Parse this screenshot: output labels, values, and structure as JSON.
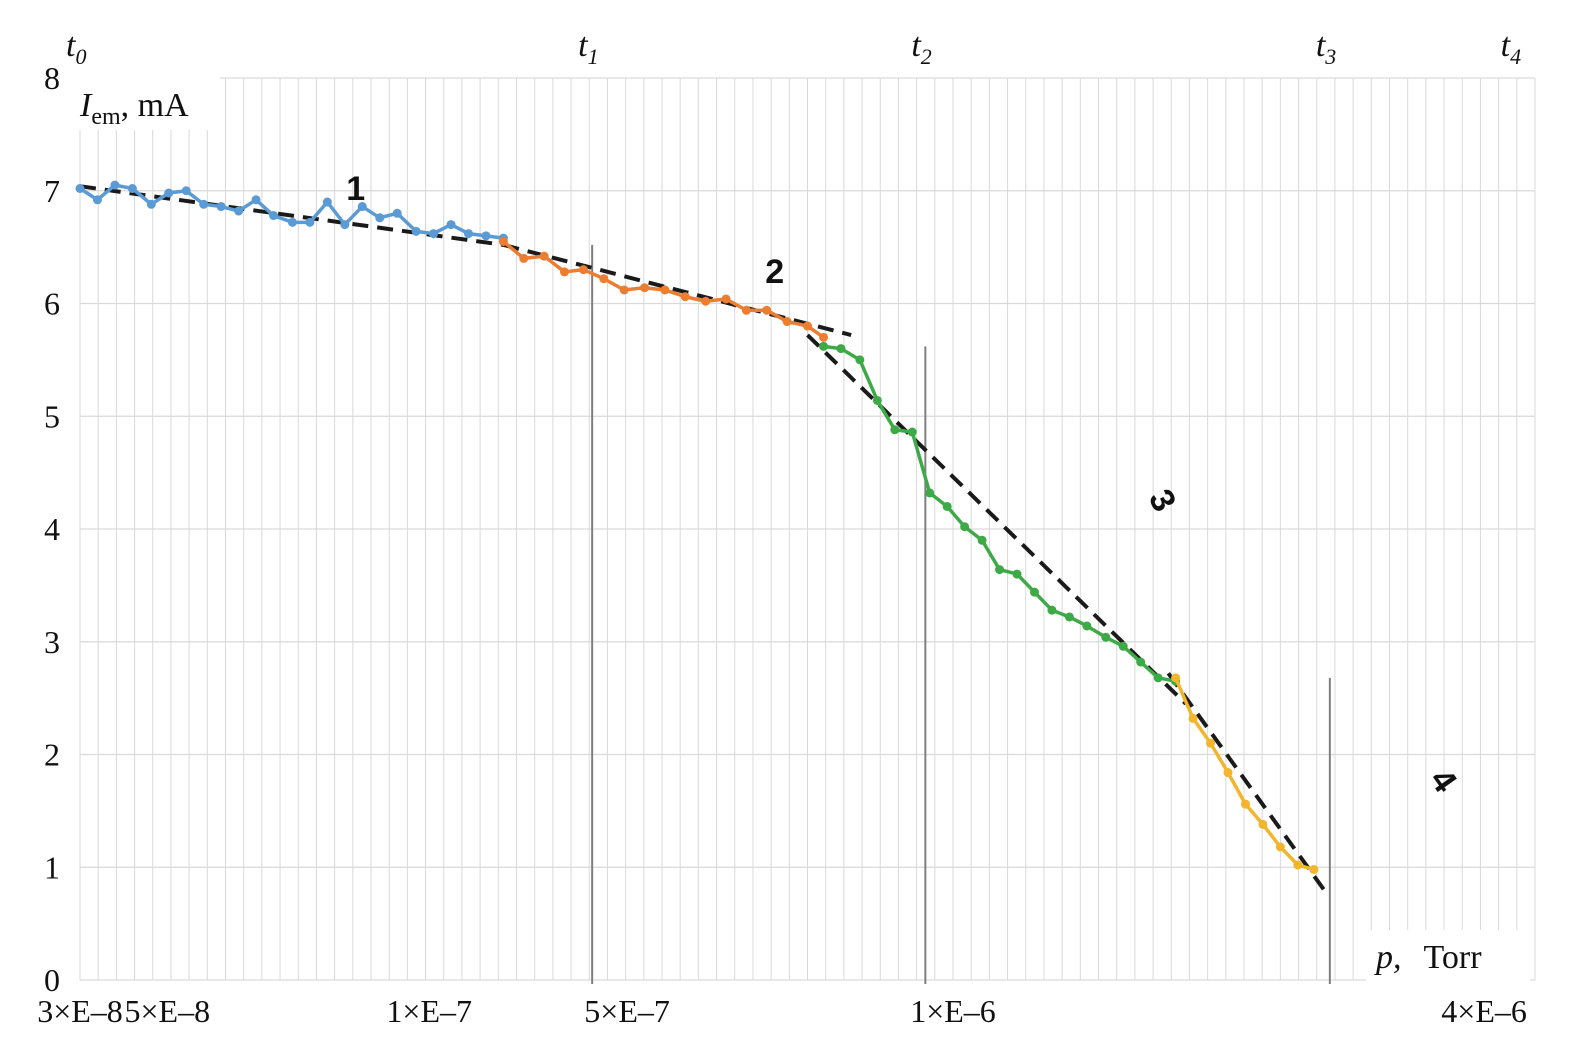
{
  "chart_data": {
    "type": "line",
    "title": "",
    "ylabel": {
      "symbol": "I",
      "subscript": "em",
      "unit": ", mA"
    },
    "xlabel": {
      "symbol": "p,",
      "unit": "Torr"
    },
    "ylim": [
      0,
      8
    ],
    "y_ticks": [
      "0",
      "1",
      "2",
      "3",
      "4",
      "5",
      "6",
      "7",
      "8"
    ],
    "x_tick_labels": [
      {
        "text": "3×E–8",
        "t": 0.0
      },
      {
        "text": "5×E–8",
        "t": 0.06
      },
      {
        "text": "1×E–7",
        "t": 0.24
      },
      {
        "text": "5×E–7",
        "t": 0.376
      },
      {
        "text": "1×E–6",
        "t": 0.6
      },
      {
        "text": "4×E–6",
        "t": 0.965
      }
    ],
    "grid": true,
    "events": [
      {
        "name": "t",
        "sub": "0",
        "t": 0.0
      },
      {
        "name": "t",
        "sub": "1",
        "t": 0.352
      },
      {
        "name": "t",
        "sub": "2",
        "t": 0.581
      },
      {
        "name": "t",
        "sub": "3",
        "t": 0.859
      },
      {
        "name": "t",
        "sub": "4",
        "t": 0.986
      }
    ],
    "series": [
      {
        "label": "1",
        "color": "#5b9bd5",
        "points": [
          [
            0.0,
            7.02
          ],
          [
            0.012,
            6.92
          ],
          [
            0.024,
            7.05
          ],
          [
            0.036,
            7.02
          ],
          [
            0.049,
            6.88
          ],
          [
            0.061,
            6.98
          ],
          [
            0.073,
            7.0
          ],
          [
            0.085,
            6.88
          ],
          [
            0.097,
            6.86
          ],
          [
            0.109,
            6.82
          ],
          [
            0.121,
            6.92
          ],
          [
            0.133,
            6.78
          ],
          [
            0.146,
            6.72
          ],
          [
            0.158,
            6.72
          ],
          [
            0.17,
            6.9
          ],
          [
            0.182,
            6.7
          ],
          [
            0.194,
            6.86
          ],
          [
            0.206,
            6.76
          ],
          [
            0.218,
            6.8
          ],
          [
            0.231,
            6.64
          ],
          [
            0.243,
            6.62
          ],
          [
            0.255,
            6.7
          ],
          [
            0.267,
            6.62
          ],
          [
            0.279,
            6.6
          ],
          [
            0.291,
            6.58
          ]
        ]
      },
      {
        "label": "2",
        "color": "#ed7d31",
        "points": [
          [
            0.291,
            6.55
          ],
          [
            0.305,
            6.4
          ],
          [
            0.319,
            6.42
          ],
          [
            0.333,
            6.28
          ],
          [
            0.346,
            6.3
          ],
          [
            0.36,
            6.22
          ],
          [
            0.374,
            6.12
          ],
          [
            0.388,
            6.14
          ],
          [
            0.402,
            6.12
          ],
          [
            0.416,
            6.06
          ],
          [
            0.43,
            6.02
          ],
          [
            0.444,
            6.04
          ],
          [
            0.458,
            5.94
          ],
          [
            0.472,
            5.94
          ],
          [
            0.486,
            5.84
          ],
          [
            0.5,
            5.8
          ],
          [
            0.511,
            5.7
          ]
        ]
      },
      {
        "label": "3",
        "color": "#3daa47",
        "points": [
          [
            0.511,
            5.62
          ],
          [
            0.523,
            5.6
          ],
          [
            0.536,
            5.5
          ],
          [
            0.548,
            5.14
          ],
          [
            0.56,
            4.88
          ],
          [
            0.572,
            4.86
          ],
          [
            0.584,
            4.32
          ],
          [
            0.596,
            4.2
          ],
          [
            0.608,
            4.02
          ],
          [
            0.62,
            3.9
          ],
          [
            0.632,
            3.64
          ],
          [
            0.644,
            3.6
          ],
          [
            0.656,
            3.44
          ],
          [
            0.668,
            3.28
          ],
          [
            0.68,
            3.22
          ],
          [
            0.692,
            3.14
          ],
          [
            0.705,
            3.04
          ],
          [
            0.717,
            2.96
          ],
          [
            0.729,
            2.82
          ],
          [
            0.741,
            2.68
          ],
          [
            0.753,
            2.65
          ]
        ]
      },
      {
        "label": "4",
        "color": "#f2b52b",
        "points": [
          [
            0.753,
            2.68
          ],
          [
            0.765,
            2.32
          ],
          [
            0.777,
            2.1
          ],
          [
            0.789,
            1.84
          ],
          [
            0.801,
            1.56
          ],
          [
            0.813,
            1.38
          ],
          [
            0.825,
            1.18
          ],
          [
            0.837,
            1.02
          ],
          [
            0.848,
            0.98
          ]
        ]
      }
    ],
    "trend_lines": [
      {
        "from": [
          0.0,
          7.04
        ],
        "to": [
          0.291,
          6.52
        ]
      },
      {
        "from": [
          0.291,
          6.52
        ],
        "to": [
          0.53,
          5.72
        ]
      },
      {
        "from": [
          0.5,
          5.72
        ],
        "to": [
          0.76,
          2.45
        ]
      },
      {
        "from": [
          0.748,
          2.72
        ],
        "to": [
          0.855,
          0.8
        ]
      }
    ]
  }
}
